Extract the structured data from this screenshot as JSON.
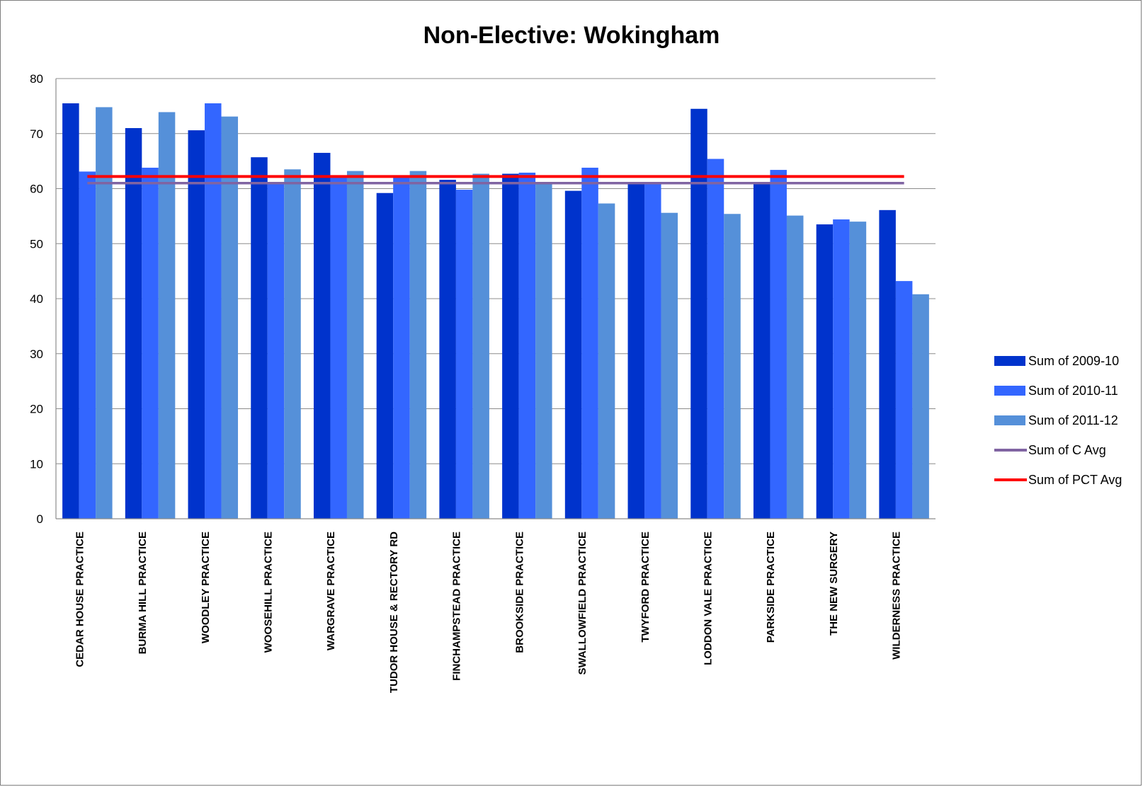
{
  "chart_data": {
    "type": "bar",
    "title": "Non-Elective: Wokingham",
    "xlabel": "",
    "ylabel": "",
    "ylim": [
      0,
      80
    ],
    "yticks": [
      "0",
      "10",
      "20",
      "30",
      "40",
      "50",
      "60",
      "70",
      "80"
    ],
    "grid": true,
    "legend_position": "right",
    "categories": [
      "CEDAR HOUSE PRACTICE",
      "BURMA HILL PRACTICE",
      "WOODLEY PRACTICE",
      "WOOSEHILL PRACTICE",
      "WARGRAVE PRACTICE",
      "TUDOR HOUSE & RECTORY RD",
      "FINCHAMPSTEAD PRACTICE",
      "BROOKSIDE PRACTICE",
      "SWALLOWFIELD PRACTICE",
      "TWYFORD PRACTICE",
      "LODDON VALE PRACTICE",
      "PARKSIDE PRACTICE",
      "THE NEW SURGERY",
      "WILDERNESS PRACTICE"
    ],
    "series": [
      {
        "name": "Sum of 2009-10",
        "kind": "bar",
        "color": "#0033cc",
        "values": [
          75.5,
          71.0,
          70.6,
          65.7,
          66.5,
          59.2,
          61.6,
          62.7,
          59.6,
          60.8,
          74.5,
          61.0,
          53.5,
          56.1
        ]
      },
      {
        "name": "Sum of 2010-11",
        "kind": "bar",
        "color": "#3366ff",
        "values": [
          63.1,
          63.8,
          75.5,
          61.0,
          62.0,
          62.0,
          59.8,
          62.9,
          63.8,
          61.0,
          65.4,
          63.4,
          54.4,
          43.2
        ]
      },
      {
        "name": "Sum of 2011-12",
        "kind": "bar",
        "color": "#5590d9",
        "values": [
          74.8,
          73.9,
          73.1,
          63.5,
          63.2,
          63.2,
          62.7,
          61.0,
          57.3,
          55.6,
          55.4,
          55.1,
          54.0,
          40.8
        ]
      },
      {
        "name": "Sum of C Avg",
        "kind": "line",
        "color": "#8064a2",
        "value": 61.0
      },
      {
        "name": "Sum of PCT Avg",
        "kind": "line",
        "color": "#ff0000",
        "value": 62.2
      }
    ]
  }
}
